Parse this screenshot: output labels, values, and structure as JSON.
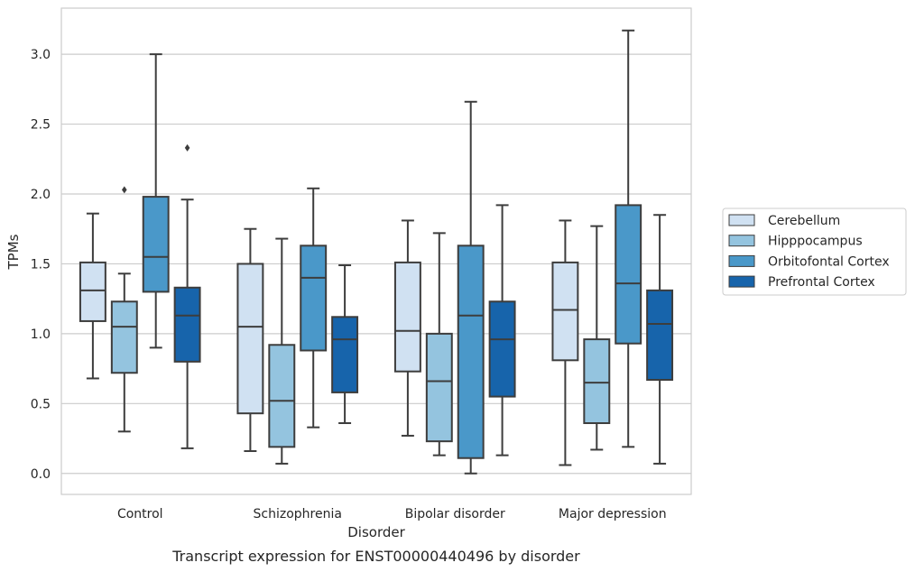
{
  "caption": "Transcript expression for ENST00000440496 by disorder",
  "chart_data": {
    "type": "box",
    "xlabel": "Disorder",
    "ylabel": "TPMs",
    "ylim": [
      -0.15,
      3.33
    ],
    "yticks": [
      "0.0",
      "0.5",
      "1.0",
      "1.5",
      "2.0",
      "2.5",
      "3.0"
    ],
    "grid": "horizontal",
    "legend_position": "right",
    "categories": [
      "Control",
      "Schizophrenia",
      "Bipolar disorder",
      "Major depression"
    ],
    "series": [
      {
        "name": "Cerebellum",
        "color": "#d0e1f2",
        "boxes": [
          {
            "whislo": 0.68,
            "q1": 1.09,
            "med": 1.31,
            "q3": 1.51,
            "whishi": 1.86,
            "fliers": []
          },
          {
            "whislo": 0.16,
            "q1": 0.43,
            "med": 1.05,
            "q3": 1.5,
            "whishi": 1.75,
            "fliers": []
          },
          {
            "whislo": 0.27,
            "q1": 0.73,
            "med": 1.02,
            "q3": 1.51,
            "whishi": 1.81,
            "fliers": []
          },
          {
            "whislo": 0.06,
            "q1": 0.81,
            "med": 1.17,
            "q3": 1.51,
            "whishi": 1.81,
            "fliers": []
          }
        ]
      },
      {
        "name": "Hipppocampus",
        "color": "#94c4df",
        "boxes": [
          {
            "whislo": 0.3,
            "q1": 0.72,
            "med": 1.05,
            "q3": 1.23,
            "whishi": 1.43,
            "fliers": [
              2.03
            ]
          },
          {
            "whislo": 0.07,
            "q1": 0.19,
            "med": 0.52,
            "q3": 0.92,
            "whishi": 1.68,
            "fliers": []
          },
          {
            "whislo": 0.13,
            "q1": 0.23,
            "med": 0.66,
            "q3": 1.0,
            "whishi": 1.72,
            "fliers": []
          },
          {
            "whislo": 0.17,
            "q1": 0.36,
            "med": 0.65,
            "q3": 0.96,
            "whishi": 1.77,
            "fliers": []
          }
        ]
      },
      {
        "name": "Orbitofontal Cortex",
        "color": "#4a98c9",
        "boxes": [
          {
            "whislo": 0.9,
            "q1": 1.3,
            "med": 1.55,
            "q3": 1.98,
            "whishi": 3.0,
            "fliers": []
          },
          {
            "whislo": 0.33,
            "q1": 0.88,
            "med": 1.4,
            "q3": 1.63,
            "whishi": 2.04,
            "fliers": []
          },
          {
            "whislo": 0.0,
            "q1": 0.11,
            "med": 1.13,
            "q3": 1.63,
            "whishi": 2.66,
            "fliers": []
          },
          {
            "whislo": 0.19,
            "q1": 0.93,
            "med": 1.36,
            "q3": 1.92,
            "whishi": 3.17,
            "fliers": []
          }
        ]
      },
      {
        "name": "Prefrontal Cortex",
        "color": "#1764ab",
        "boxes": [
          {
            "whislo": 0.18,
            "q1": 0.8,
            "med": 1.13,
            "q3": 1.33,
            "whishi": 1.96,
            "fliers": [
              2.33
            ]
          },
          {
            "whislo": 0.36,
            "q1": 0.58,
            "med": 0.96,
            "q3": 1.12,
            "whishi": 1.49,
            "fliers": []
          },
          {
            "whislo": 0.13,
            "q1": 0.55,
            "med": 0.96,
            "q3": 1.23,
            "whishi": 1.92,
            "fliers": []
          },
          {
            "whislo": 0.07,
            "q1": 0.67,
            "med": 1.07,
            "q3": 1.31,
            "whishi": 1.85,
            "fliers": []
          }
        ]
      }
    ]
  }
}
